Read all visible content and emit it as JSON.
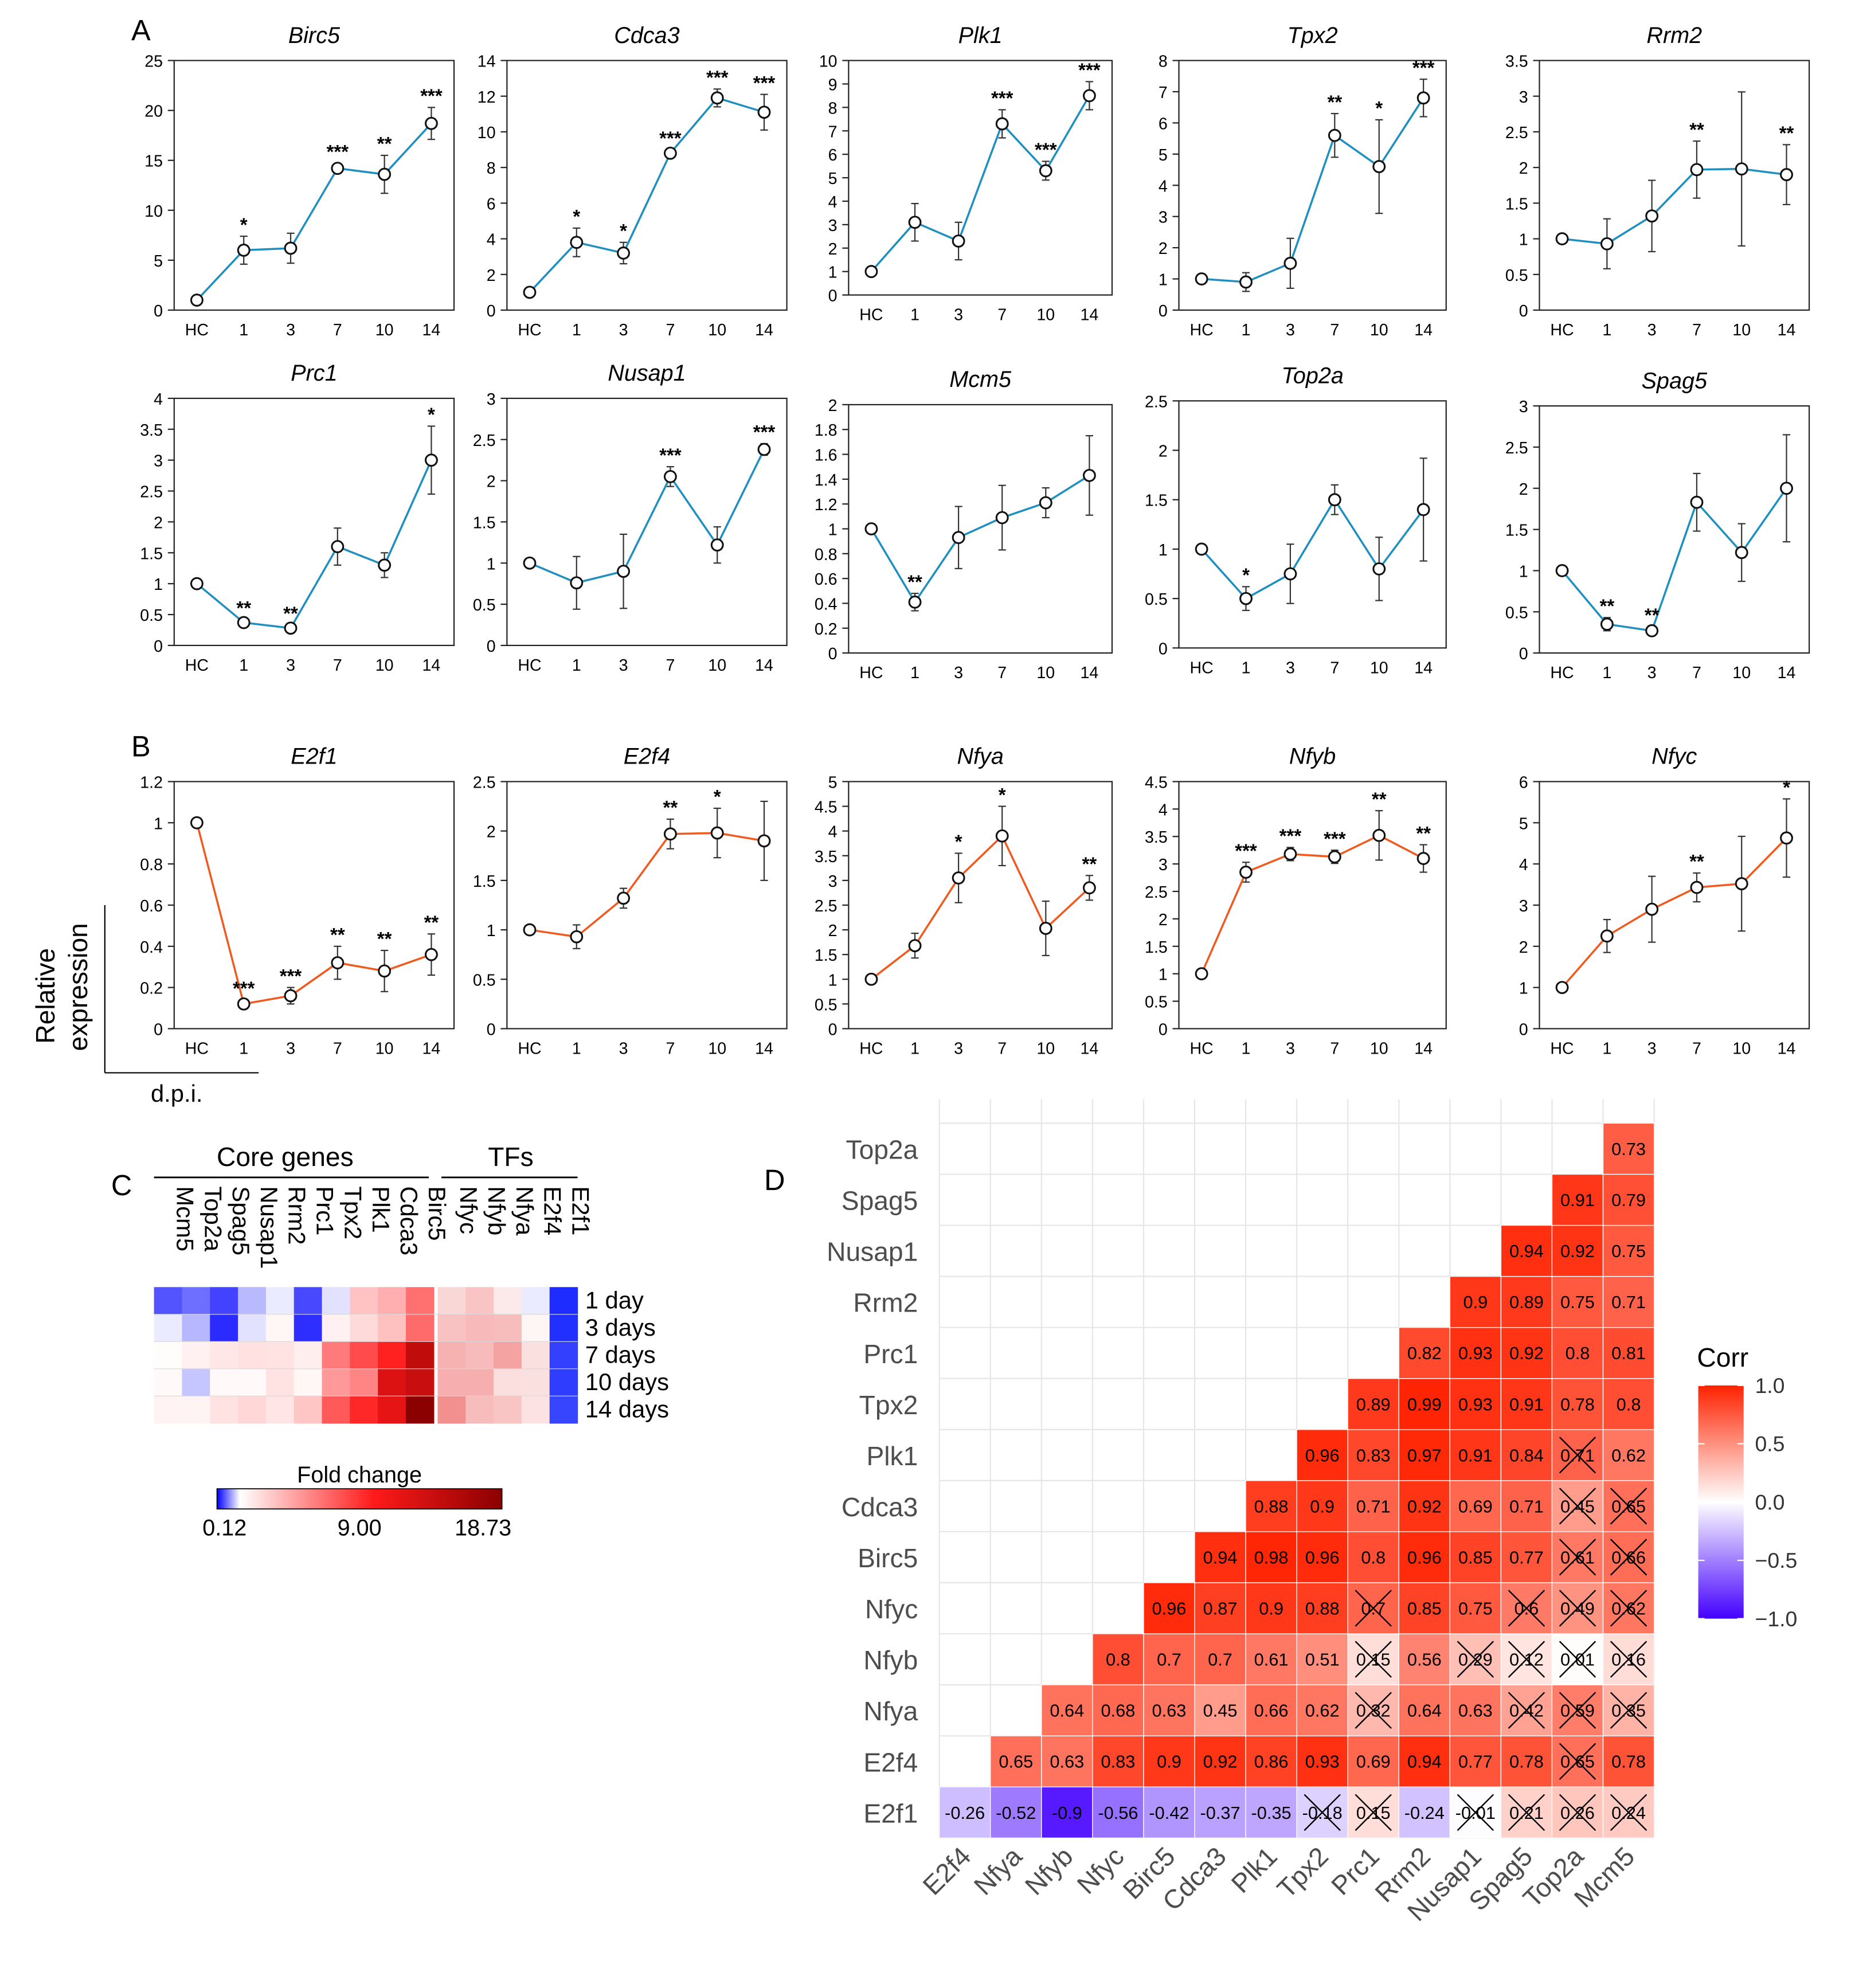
{
  "colors": {
    "seriesA": "#1f8fc0",
    "seriesB": "#f05a1e",
    "heat_low": "#0000ff",
    "heat_mid": "#ffffff",
    "heat_high": "#cc0000",
    "heat_max": "#8b0000",
    "corr_neg": "#4400ff",
    "corr_pos": "#ff2200",
    "grid": "#e6e6e6"
  },
  "panel_labels": {
    "a": "A",
    "b": "B",
    "c": "C",
    "d": "D"
  },
  "xcats": [
    "HC",
    "1",
    "3",
    "7",
    "10",
    "14"
  ],
  "ylabel_b": [
    "Relative",
    "expression"
  ],
  "xlabel_b": "d.p.i.",
  "chart_data": [
    {
      "type": "line",
      "panel": "A",
      "title": "Birc5",
      "categories": [
        "HC",
        "1",
        "3",
        "7",
        "10",
        "14"
      ],
      "values": [
        1,
        6,
        6.2,
        14.2,
        13.6,
        18.7
      ],
      "errors": [
        0,
        1.4,
        1.5,
        0.5,
        1.9,
        1.6
      ],
      "sig": [
        "",
        "*",
        "",
        "***",
        "**",
        "***"
      ],
      "ylim": [
        0,
        25
      ],
      "yticks": [
        "0",
        "5",
        "10",
        "15",
        "20",
        "25"
      ]
    },
    {
      "type": "line",
      "panel": "A",
      "title": "Cdca3",
      "categories": [
        "HC",
        "1",
        "3",
        "7",
        "10",
        "14"
      ],
      "values": [
        1,
        3.8,
        3.2,
        8.8,
        11.9,
        11.1
      ],
      "errors": [
        0,
        0.8,
        0.6,
        0.2,
        0.5,
        1
      ],
      "sig": [
        "",
        "*",
        "*",
        "***",
        "***",
        "***"
      ],
      "ylim": [
        0,
        14
      ],
      "yticks": [
        "0",
        "2",
        "4",
        "6",
        "8",
        "10",
        "12",
        "14"
      ]
    },
    {
      "type": "line",
      "panel": "A",
      "title": "Plk1",
      "categories": [
        "HC",
        "1",
        "3",
        "7",
        "10",
        "14"
      ],
      "values": [
        1,
        3.1,
        2.3,
        7.3,
        5.3,
        8.5
      ],
      "errors": [
        0,
        0.8,
        0.8,
        0.6,
        0.4,
        0.6
      ],
      "sig": [
        "",
        "",
        "",
        "***",
        "***",
        "***"
      ],
      "ylim": [
        0,
        10
      ],
      "yticks": [
        "0",
        "1",
        "2",
        "3",
        "4",
        "5",
        "6",
        "7",
        "8",
        "9",
        "10"
      ]
    },
    {
      "type": "line",
      "panel": "A",
      "title": "Tpx2",
      "categories": [
        "HC",
        "1",
        "3",
        "7",
        "10",
        "14"
      ],
      "values": [
        1,
        0.9,
        1.5,
        5.6,
        4.6,
        6.8
      ],
      "errors": [
        0,
        0.3,
        0.8,
        0.7,
        1.5,
        0.6
      ],
      "sig": [
        "",
        "",
        "",
        "**",
        "*",
        "***"
      ],
      "ylim": [
        0,
        8
      ],
      "yticks": [
        "0",
        "1",
        "2",
        "3",
        "4",
        "5",
        "6",
        "7",
        "8"
      ]
    },
    {
      "type": "line",
      "panel": "A",
      "title": "Rrm2",
      "categories": [
        "HC",
        "1",
        "3",
        "7",
        "10",
        "14"
      ],
      "values": [
        1,
        0.93,
        1.32,
        1.97,
        1.98,
        1.9
      ],
      "errors": [
        0,
        0.35,
        0.5,
        0.4,
        1.08,
        0.42
      ],
      "sig": [
        "",
        "",
        "",
        "**",
        "",
        "**"
      ],
      "ylim": [
        0,
        3.5
      ],
      "yticks": [
        "0",
        "0.5",
        "1",
        "1.5",
        "2",
        "2.5",
        "3",
        "3.5"
      ]
    },
    {
      "type": "line",
      "panel": "A",
      "title": "Prc1",
      "categories": [
        "HC",
        "1",
        "3",
        "7",
        "10",
        "14"
      ],
      "values": [
        1,
        0.37,
        0.28,
        1.6,
        1.3,
        3
      ],
      "errors": [
        0,
        0.05,
        0.05,
        0.3,
        0.2,
        0.55
      ],
      "sig": [
        "",
        "**",
        "**",
        "",
        "",
        "*"
      ],
      "ylim": [
        0,
        4
      ],
      "yticks": [
        "0",
        "0.5",
        "1",
        "1.5",
        "2",
        "2.5",
        "3",
        "3.5",
        "4"
      ]
    },
    {
      "type": "line",
      "panel": "A",
      "title": "Nusap1",
      "categories": [
        "HC",
        "1",
        "3",
        "7",
        "10",
        "14"
      ],
      "values": [
        1,
        0.76,
        0.9,
        2.05,
        1.22,
        2.38
      ],
      "errors": [
        0,
        0.32,
        0.45,
        0.12,
        0.22,
        0.07
      ],
      "sig": [
        "",
        "",
        "",
        "***",
        "",
        "***"
      ],
      "ylim": [
        0,
        3
      ],
      "yticks": [
        "0",
        "0.5",
        "1",
        "1.5",
        "2",
        "2.5",
        "3"
      ]
    },
    {
      "type": "line",
      "panel": "A",
      "title": "Mcm5",
      "categories": [
        "HC",
        "1",
        "3",
        "7",
        "10",
        "14"
      ],
      "values": [
        1,
        0.41,
        0.93,
        1.09,
        1.21,
        1.43
      ],
      "errors": [
        0,
        0.07,
        0.25,
        0.26,
        0.12,
        0.32
      ],
      "sig": [
        "",
        "**",
        "",
        "",
        "",
        ""
      ],
      "ylim": [
        0,
        2
      ],
      "yticks": [
        "0",
        "0.2",
        "0.4",
        "0.6",
        "0.8",
        "1",
        "1.2",
        "1.4",
        "1.6",
        "1.8",
        "2"
      ]
    },
    {
      "type": "line",
      "panel": "A",
      "title": "Top2a",
      "categories": [
        "HC",
        "1",
        "3",
        "7",
        "10",
        "14"
      ],
      "values": [
        1,
        0.5,
        0.75,
        1.5,
        0.8,
        1.4
      ],
      "errors": [
        0,
        0.12,
        0.3,
        0.15,
        0.32,
        0.52
      ],
      "sig": [
        "",
        "*",
        "",
        "",
        "",
        ""
      ],
      "ylim": [
        0,
        2.5
      ],
      "yticks": [
        "0",
        "0.5",
        "1",
        "1.5",
        "2",
        "2.5"
      ]
    },
    {
      "type": "line",
      "panel": "A",
      "title": "Spag5",
      "categories": [
        "HC",
        "1",
        "3",
        "7",
        "10",
        "14"
      ],
      "values": [
        1,
        0.35,
        0.27,
        1.83,
        1.22,
        2
      ],
      "errors": [
        0,
        0.08,
        0.05,
        0.35,
        0.35,
        0.65
      ],
      "sig": [
        "",
        "**",
        "**",
        "",
        "",
        ""
      ],
      "ylim": [
        0,
        3
      ],
      "yticks": [
        "0",
        "0.5",
        "1",
        "1.5",
        "2",
        "2.5",
        "3"
      ]
    },
    {
      "type": "line",
      "panel": "B",
      "title": "E2f1",
      "categories": [
        "HC",
        "1",
        "3",
        "7",
        "10",
        "14"
      ],
      "values": [
        1,
        0.12,
        0.16,
        0.32,
        0.28,
        0.36
      ],
      "errors": [
        0,
        0.02,
        0.04,
        0.08,
        0.1,
        0.1
      ],
      "sig": [
        "",
        "***",
        "***",
        "**",
        "**",
        "**"
      ],
      "ylim": [
        0,
        1.2
      ],
      "yticks": [
        "0",
        "0.2",
        "0.4",
        "0.6",
        "0.8",
        "1",
        "1.2"
      ]
    },
    {
      "type": "line",
      "panel": "B",
      "title": "E2f4",
      "categories": [
        "HC",
        "1",
        "3",
        "7",
        "10",
        "14"
      ],
      "values": [
        1,
        0.93,
        1.32,
        1.97,
        1.98,
        1.9
      ],
      "errors": [
        0,
        0.12,
        0.1,
        0.15,
        0.25,
        0.4
      ],
      "sig": [
        "",
        "",
        "",
        "**",
        "*",
        ""
      ],
      "ylim": [
        0,
        2.5
      ],
      "yticks": [
        "0",
        "0.5",
        "1",
        "1.5",
        "2",
        "2.5"
      ]
    },
    {
      "type": "line",
      "panel": "B",
      "title": "Nfya",
      "categories": [
        "HC",
        "1",
        "3",
        "7",
        "10",
        "14"
      ],
      "values": [
        1,
        1.68,
        3.05,
        3.9,
        2.03,
        2.85
      ],
      "errors": [
        0,
        0.25,
        0.5,
        0.6,
        0.55,
        0.25
      ],
      "sig": [
        "",
        "",
        "*",
        "*",
        "",
        "**"
      ],
      "ylim": [
        0,
        5
      ],
      "yticks": [
        "0",
        "0.5",
        "1",
        "1.5",
        "2",
        "2.5",
        "3",
        "3.5",
        "4",
        "4.5",
        "5"
      ]
    },
    {
      "type": "line",
      "panel": "B",
      "title": "Nfyb",
      "categories": [
        "HC",
        "1",
        "3",
        "7",
        "10",
        "14"
      ],
      "values": [
        1,
        2.85,
        3.18,
        3.13,
        3.52,
        3.1
      ],
      "errors": [
        0,
        0.18,
        0.12,
        0.12,
        0.45,
        0.25
      ],
      "sig": [
        "",
        "***",
        "***",
        "***",
        "**",
        "**"
      ],
      "ylim": [
        0,
        4.5
      ],
      "yticks": [
        "0",
        "0.5",
        "1",
        "1.5",
        "2",
        "2.5",
        "3",
        "3.5",
        "4",
        "4.5"
      ]
    },
    {
      "type": "line",
      "panel": "B",
      "title": "Nfyc",
      "categories": [
        "HC",
        "1",
        "3",
        "7",
        "10",
        "14"
      ],
      "values": [
        1,
        2.25,
        2.9,
        3.43,
        3.52,
        4.63
      ],
      "errors": [
        0,
        0.4,
        0.8,
        0.35,
        1.15,
        0.95
      ],
      "sig": [
        "",
        "",
        "",
        "**",
        "",
        "*"
      ],
      "ylim": [
        0,
        6
      ],
      "yticks": [
        "0",
        "1",
        "2",
        "3",
        "4",
        "5",
        "6"
      ]
    },
    {
      "type": "heatmap",
      "panel": "C",
      "group_core": "Core genes",
      "group_tfs": "TFs",
      "columns_core": [
        "Mcm5",
        "Top2a",
        "Spag5",
        "Nusap1",
        "Rrm2",
        "Prc1",
        "Tpx2",
        "Plk1",
        "Cdca3",
        "Birc5"
      ],
      "columns_tfs": [
        "Nfyc",
        "Nfyb",
        "Nfya",
        "E2f4",
        "E2f1"
      ],
      "rows": [
        "1 day",
        "3 days",
        "7 days",
        "10 days",
        "14 days"
      ],
      "values_core": [
        [
          0.41,
          0.5,
          0.35,
          0.76,
          0.93,
          0.37,
          0.9,
          3.1,
          3.8,
          6
        ],
        [
          0.93,
          0.75,
          0.27,
          0.9,
          1.32,
          0.28,
          1.5,
          2.3,
          3.2,
          6.2
        ],
        [
          1.09,
          1.5,
          1.83,
          2.05,
          1.97,
          1.6,
          5.6,
          7.3,
          8.8,
          14.2
        ],
        [
          1.21,
          0.8,
          1.22,
          1.22,
          1.98,
          1.3,
          4.6,
          5.3,
          11.9,
          13.6
        ],
        [
          1.43,
          1.4,
          2,
          2.38,
          1.9,
          3,
          6.8,
          8.5,
          11.1,
          18.7
        ]
      ],
      "values_tfs": [
        [
          2.25,
          2.85,
          1.68,
          0.93,
          0.12
        ],
        [
          2.9,
          3.18,
          3.05,
          1.32,
          0.16
        ],
        [
          3.43,
          3.13,
          3.9,
          1.97,
          0.32
        ],
        [
          3.52,
          3.52,
          2.03,
          1.98,
          0.28
        ],
        [
          4.63,
          3.1,
          2.85,
          1.9,
          0.36
        ]
      ],
      "legend_title": "Fold change",
      "legend_ticks": [
        "0.12",
        "9.00",
        "18.73"
      ],
      "range": [
        0.12,
        18.73
      ]
    },
    {
      "type": "heatmap",
      "panel": "D",
      "subtype": "correlation",
      "legend_title": "Corr",
      "legend_ticks": [
        "1.0",
        "0.5",
        "0.0",
        "−0.5",
        "−1.0"
      ],
      "variables": [
        "E2f1",
        "E2f4",
        "Nfya",
        "Nfyb",
        "Nfyc",
        "Birc5",
        "Cdca3",
        "Plk1",
        "Tpx2",
        "Prc1",
        "Rrm2",
        "Nusap1",
        "Spag5",
        "Top2a",
        "Mcm5"
      ],
      "rows": [
        {
          "name": "E2f1",
          "values": [
            -0.26,
            -0.52,
            -0.9,
            -0.56,
            -0.42,
            -0.37,
            -0.35,
            -0.18,
            0.15,
            -0.24,
            -0.01,
            0.21,
            0.26,
            0.24
          ],
          "crossed": [
            8,
            9,
            11,
            12,
            13,
            14
          ]
        },
        {
          "name": "E2f4",
          "values": [
            0.65,
            0.63,
            0.83,
            0.9,
            0.92,
            0.86,
            0.93,
            0.69,
            0.94,
            0.77,
            0.78,
            0.65,
            0.78
          ],
          "crossed": [
            13
          ]
        },
        {
          "name": "Nfya",
          "values": [
            0.64,
            0.68,
            0.63,
            0.45,
            0.66,
            0.62,
            0.32,
            0.64,
            0.63,
            0.42,
            0.59,
            0.35
          ],
          "crossed": [
            9,
            12,
            13,
            14
          ]
        },
        {
          "name": "Nfyb",
          "values": [
            0.8,
            0.7,
            0.7,
            0.61,
            0.51,
            0.15,
            0.56,
            0.29,
            0.12,
            0.01,
            0.16
          ],
          "crossed": [
            9,
            11,
            12,
            13,
            14
          ]
        },
        {
          "name": "Nfyc",
          "values": [
            0.96,
            0.87,
            0.9,
            0.88,
            0.7,
            0.85,
            0.75,
            0.6,
            0.49,
            0.62
          ],
          "crossed": [
            9,
            12,
            13,
            14
          ]
        },
        {
          "name": "Birc5",
          "values": [
            0.94,
            0.98,
            0.96,
            0.8,
            0.96,
            0.85,
            0.77,
            0.61,
            0.66
          ],
          "crossed": [
            13,
            14
          ]
        },
        {
          "name": "Cdca3",
          "values": [
            0.88,
            0.9,
            0.71,
            0.92,
            0.69,
            0.71,
            0.45,
            0.65
          ],
          "crossed": [
            13,
            14
          ]
        },
        {
          "name": "Plk1",
          "values": [
            0.96,
            0.83,
            0.97,
            0.91,
            0.84,
            0.71,
            0.62
          ],
          "crossed": [
            13
          ]
        },
        {
          "name": "Tpx2",
          "values": [
            0.89,
            0.99,
            0.93,
            0.91,
            0.78,
            0.8
          ],
          "crossed": []
        },
        {
          "name": "Prc1",
          "values": [
            0.82,
            0.93,
            0.92,
            0.8,
            0.81
          ],
          "crossed": []
        },
        {
          "name": "Rrm2",
          "values": [
            0.9,
            0.89,
            0.75,
            0.71
          ],
          "crossed": []
        },
        {
          "name": "Nusap1",
          "values": [
            0.94,
            0.92,
            0.75
          ],
          "crossed": []
        },
        {
          "name": "Spag5",
          "values": [
            0.91,
            0.79
          ],
          "crossed": []
        },
        {
          "name": "Top2a",
          "values": [
            0.73
          ],
          "crossed": []
        }
      ]
    }
  ]
}
